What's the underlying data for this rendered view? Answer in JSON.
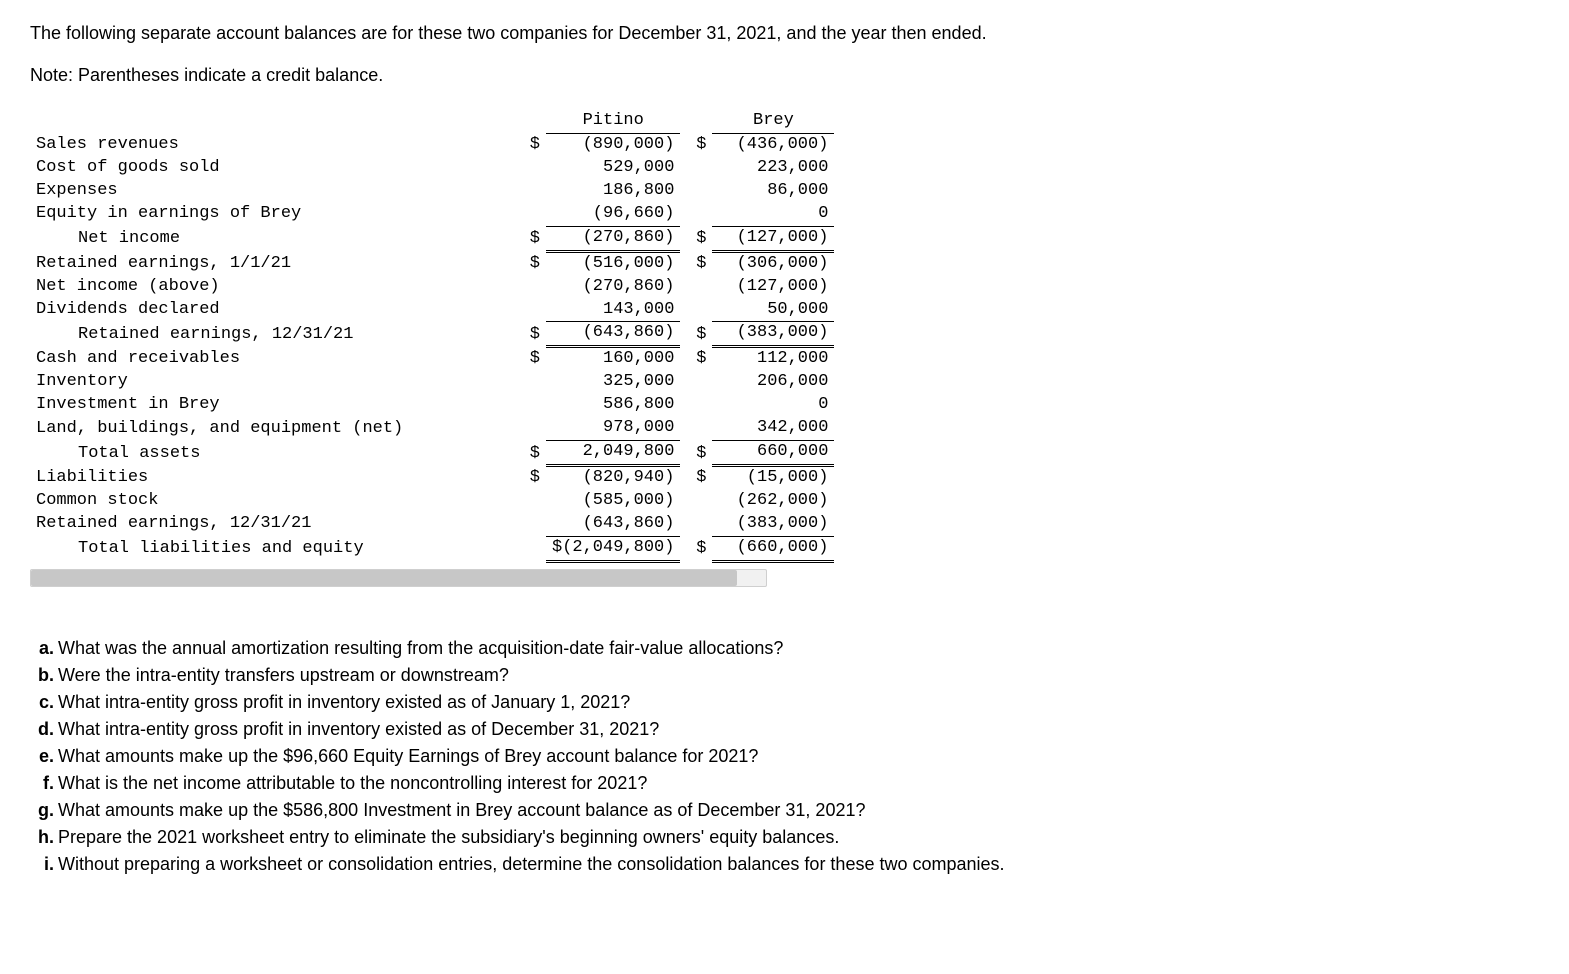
{
  "intro": "The following separate account balances are for these two companies for December 31, 2021, and the year then ended.",
  "note": "Note: Parentheses indicate a credit balance.",
  "headers": {
    "col1": "Pitino",
    "col2": "Brey"
  },
  "rows": {
    "sales": {
      "label": "Sales revenues",
      "p_sign": "$",
      "p": "(890,000)",
      "b_sign": "$",
      "b": "(436,000)"
    },
    "cogs": {
      "label": "Cost of goods sold",
      "p_sign": "",
      "p": "529,000",
      "b_sign": "",
      "b": "223,000"
    },
    "expenses": {
      "label": "Expenses",
      "p_sign": "",
      "p": "186,800",
      "b_sign": "",
      "b": "86,000"
    },
    "equity_brey": {
      "label": "Equity in earnings of Brey",
      "p_sign": "",
      "p": "(96,660)",
      "b_sign": "",
      "b": "0"
    },
    "net_income": {
      "label": "Net income",
      "p_sign": "$",
      "p": "(270,860)",
      "b_sign": "$",
      "b": "(127,000)"
    },
    "re_begin": {
      "label": "Retained earnings, 1/1/21",
      "p_sign": "$",
      "p": "(516,000)",
      "b_sign": "$",
      "b": "(306,000)"
    },
    "ni_above": {
      "label": "Net income (above)",
      "p_sign": "",
      "p": "(270,860)",
      "b_sign": "",
      "b": "(127,000)"
    },
    "dividends": {
      "label": "Dividends declared",
      "p_sign": "",
      "p": "143,000",
      "b_sign": "",
      "b": "50,000"
    },
    "re_end": {
      "label": "Retained earnings, 12/31/21",
      "p_sign": "$",
      "p": "(643,860)",
      "b_sign": "$",
      "b": "(383,000)"
    },
    "cash": {
      "label": "Cash and receivables",
      "p_sign": "$",
      "p": "160,000",
      "b_sign": "$",
      "b": "112,000"
    },
    "inventory": {
      "label": "Inventory",
      "p_sign": "",
      "p": "325,000",
      "b_sign": "",
      "b": "206,000"
    },
    "inv_brey": {
      "label": "Investment in Brey",
      "p_sign": "",
      "p": "586,800",
      "b_sign": "",
      "b": "0"
    },
    "land": {
      "label": "Land, buildings, and equipment (net)",
      "p_sign": "",
      "p": "978,000",
      "b_sign": "",
      "b": "342,000"
    },
    "tot_assets": {
      "label": "Total assets",
      "p_sign": "$",
      "p": "2,049,800",
      "b_sign": "$",
      "b": "660,000"
    },
    "liab": {
      "label": "Liabilities",
      "p_sign": "$",
      "p": "(820,940)",
      "b_sign": "$",
      "b": "(15,000)"
    },
    "common": {
      "label": "Common stock",
      "p_sign": "",
      "p": "(585,000)",
      "b_sign": "",
      "b": "(262,000)"
    },
    "re_end2": {
      "label": "Retained earnings, 12/31/21",
      "p_sign": "",
      "p": "(643,860)",
      "b_sign": "",
      "b": "(383,000)"
    },
    "tot_le": {
      "label": "Total liabilities and equity",
      "p_sign": "",
      "p": "$(2,049,800)",
      "b_sign": "$",
      "b": "(660,000)"
    }
  },
  "questions": {
    "a": {
      "letter": "a.",
      "text": "What was the annual amortization resulting from the acquisition-date fair-value allocations?"
    },
    "b": {
      "letter": "b.",
      "text": "Were the intra-entity transfers upstream or downstream?"
    },
    "c": {
      "letter": "c.",
      "text": "What intra-entity gross profit in inventory existed as of January 1, 2021?"
    },
    "d": {
      "letter": "d.",
      "text": "What intra-entity gross profit in inventory existed as of December 31, 2021?"
    },
    "e": {
      "letter": "e.",
      "text": "What amounts make up the $96,660 Equity Earnings of Brey account balance for 2021?"
    },
    "f": {
      "letter": "f.",
      "text": "What is the net income attributable to the noncontrolling interest for 2021?"
    },
    "g": {
      "letter": "g.",
      "text": "What amounts make up the $586,800 Investment in Brey account balance as of December 31, 2021?"
    },
    "h": {
      "letter": "h.",
      "text": "Prepare the 2021 worksheet entry to eliminate the subsidiary's beginning owners' equity balances."
    },
    "i": {
      "letter": "i.",
      "text": "Without preparing a worksheet or consolidation entries, determine the consolidation balances for these two companies."
    }
  }
}
